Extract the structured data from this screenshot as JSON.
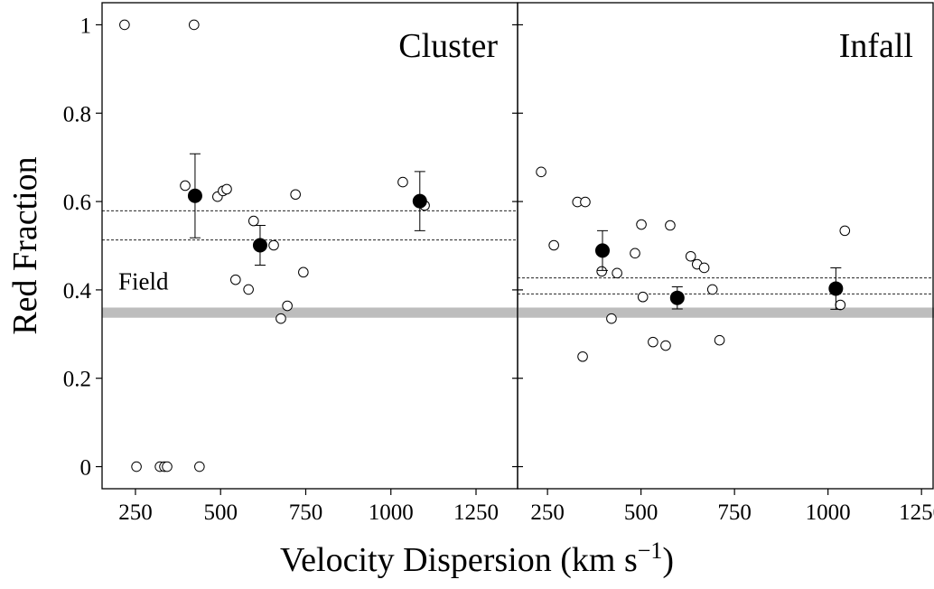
{
  "chart_data": {
    "type": "scatter",
    "ylabel": "Red Fraction",
    "xlabel": {
      "text": "Velocity Dispersion (km s",
      "sup": "−1",
      "end": ")"
    },
    "ylim": [
      -0.05,
      1.05
    ],
    "yticks": [
      0,
      0.2,
      0.4,
      0.6,
      0.8,
      1
    ],
    "panels": [
      {
        "label": "Cluster",
        "xlim": [
          152,
          1372
        ],
        "xticks": [
          250,
          500,
          750,
          1000,
          1250
        ],
        "band_label": "Field",
        "band": [
          0.337,
          0.36
        ],
        "band_color": "#bdbdbd",
        "hlines": [
          0.579,
          0.513
        ],
        "points": {
          "x": [
            218,
            422,
            253,
            322,
            335,
            343,
            438,
            396,
            491,
            507,
            518,
            597,
            544,
            582,
            656,
            720,
            696,
            677,
            743,
            1035,
            1099
          ],
          "values": [
            1.0,
            1.0,
            0,
            0,
            0,
            0,
            0,
            0.636,
            0.611,
            0.624,
            0.628,
            0.556,
            0.423,
            0.401,
            0.501,
            0.616,
            0.364,
            0.335,
            0.44,
            0.644,
            0.591
          ]
        },
        "means": {
          "x": [
            425,
            616,
            1085
          ],
          "values": [
            0.613,
            0.501,
            0.601
          ],
          "errors": [
            0.095,
            0.045,
            0.067
          ],
          "color": "#000000"
        }
      },
      {
        "label": "Infall",
        "xlim": [
          170,
          1281
        ],
        "xticks": [
          250,
          500,
          750,
          1000,
          1250
        ],
        "band": [
          0.337,
          0.36
        ],
        "band_color": "#bdbdbd",
        "hlines": [
          0.427,
          0.391
        ],
        "points": {
          "x": [
            233,
            267,
            330,
            351,
            395,
            436,
            421,
            344,
            484,
            501,
            505,
            578,
            532,
            566,
            633,
            650,
            669,
            691,
            710,
            1045,
            1033
          ],
          "values": [
            0.667,
            0.501,
            0.599,
            0.599,
            0.442,
            0.438,
            0.335,
            0.249,
            0.483,
            0.548,
            0.384,
            0.546,
            0.282,
            0.274,
            0.476,
            0.458,
            0.45,
            0.401,
            0.286,
            0.534,
            0.366
          ]
        },
        "means": {
          "x": [
            397,
            597,
            1021
          ],
          "values": [
            0.489,
            0.382,
            0.403
          ],
          "errors": [
            0.045,
            0.025,
            0.047
          ],
          "color": "#000000"
        }
      }
    ]
  }
}
